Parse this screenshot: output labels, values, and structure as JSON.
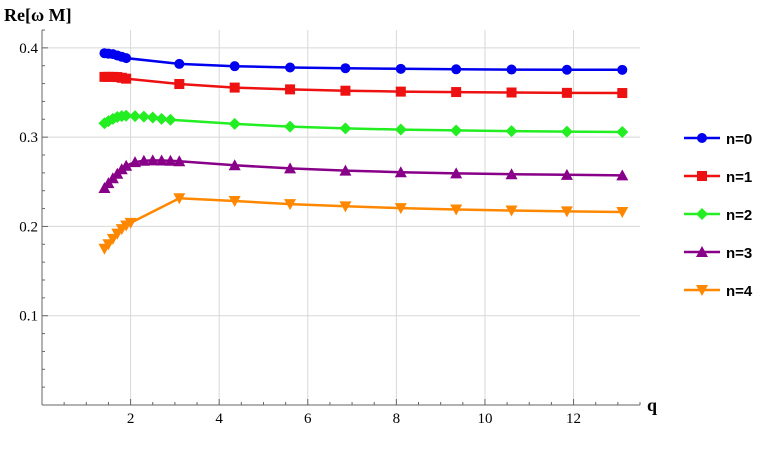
{
  "chart_data": {
    "type": "line",
    "ylabel": "Re[ω M]",
    "xlabel": "q",
    "xlim": [
      0,
      13.5
    ],
    "ylim": [
      0,
      0.42
    ],
    "x_ticks": [
      2,
      4,
      6,
      8,
      10,
      12
    ],
    "y_ticks": [
      0.1,
      0.2,
      0.3,
      0.4
    ],
    "grid": true,
    "legend_position": "right",
    "series": [
      {
        "name": "n=0",
        "color": "#0000ee",
        "marker": "circle",
        "points": [
          [
            1.41,
            0.394
          ],
          [
            1.5,
            0.3935
          ],
          [
            1.6,
            0.393
          ],
          [
            1.7,
            0.3915
          ],
          [
            1.8,
            0.39
          ],
          [
            1.9,
            0.3885
          ],
          [
            3.1,
            0.382
          ],
          [
            4.35,
            0.3795
          ],
          [
            5.6,
            0.378
          ],
          [
            6.85,
            0.3772
          ],
          [
            8.1,
            0.3765
          ],
          [
            9.35,
            0.376
          ],
          [
            10.6,
            0.3757
          ],
          [
            11.85,
            0.3755
          ],
          [
            13.1,
            0.3754
          ]
        ]
      },
      {
        "name": "n=1",
        "color": "#ee1111",
        "marker": "square",
        "points": [
          [
            1.41,
            0.3675
          ],
          [
            1.5,
            0.3675
          ],
          [
            1.6,
            0.3675
          ],
          [
            1.7,
            0.3673
          ],
          [
            1.8,
            0.3665
          ],
          [
            1.9,
            0.3655
          ],
          [
            3.1,
            0.3595
          ],
          [
            4.35,
            0.3555
          ],
          [
            5.6,
            0.3535
          ],
          [
            6.85,
            0.352
          ],
          [
            8.1,
            0.351
          ],
          [
            9.35,
            0.3505
          ],
          [
            10.6,
            0.35
          ],
          [
            11.85,
            0.3496
          ],
          [
            13.1,
            0.3494
          ]
        ]
      },
      {
        "name": "n=2",
        "color": "#22ee22",
        "marker": "diamond",
        "points": [
          [
            1.41,
            0.3155
          ],
          [
            1.5,
            0.318
          ],
          [
            1.6,
            0.3205
          ],
          [
            1.7,
            0.3225
          ],
          [
            1.8,
            0.3235
          ],
          [
            1.9,
            0.324
          ],
          [
            2.1,
            0.3235
          ],
          [
            2.3,
            0.323
          ],
          [
            2.5,
            0.322
          ],
          [
            2.7,
            0.3205
          ],
          [
            2.9,
            0.3195
          ],
          [
            4.35,
            0.3148
          ],
          [
            5.6,
            0.3118
          ],
          [
            6.85,
            0.3098
          ],
          [
            8.1,
            0.3085
          ],
          [
            9.35,
            0.3075
          ],
          [
            10.6,
            0.3068
          ],
          [
            11.85,
            0.3062
          ],
          [
            13.1,
            0.3058
          ]
        ]
      },
      {
        "name": "n=3",
        "color": "#880088",
        "marker": "triangle-up",
        "points": [
          [
            1.41,
            0.243
          ],
          [
            1.5,
            0.2485
          ],
          [
            1.6,
            0.254
          ],
          [
            1.7,
            0.259
          ],
          [
            1.8,
            0.264
          ],
          [
            1.9,
            0.268
          ],
          [
            2.1,
            0.272
          ],
          [
            2.3,
            0.2735
          ],
          [
            2.5,
            0.274
          ],
          [
            2.7,
            0.2738
          ],
          [
            2.9,
            0.2735
          ],
          [
            3.1,
            0.273
          ],
          [
            4.35,
            0.2685
          ],
          [
            5.6,
            0.265
          ],
          [
            6.85,
            0.2625
          ],
          [
            8.1,
            0.2607
          ],
          [
            9.35,
            0.2594
          ],
          [
            10.6,
            0.2585
          ],
          [
            11.85,
            0.2578
          ],
          [
            13.1,
            0.2572
          ]
        ]
      },
      {
        "name": "n=4",
        "color": "#ff8800",
        "marker": "triangle-down",
        "points": [
          [
            1.41,
            0.175
          ],
          [
            1.5,
            0.18
          ],
          [
            1.6,
            0.186
          ],
          [
            1.7,
            0.192
          ],
          [
            1.8,
            0.197
          ],
          [
            1.9,
            0.201
          ],
          [
            2.0,
            0.204
          ],
          [
            3.1,
            0.2315
          ],
          [
            4.35,
            0.2285
          ],
          [
            5.6,
            0.225
          ],
          [
            6.85,
            0.2225
          ],
          [
            8.1,
            0.2205
          ],
          [
            9.35,
            0.219
          ],
          [
            10.6,
            0.2178
          ],
          [
            11.85,
            0.2168
          ],
          [
            13.1,
            0.2162
          ]
        ]
      }
    ]
  }
}
